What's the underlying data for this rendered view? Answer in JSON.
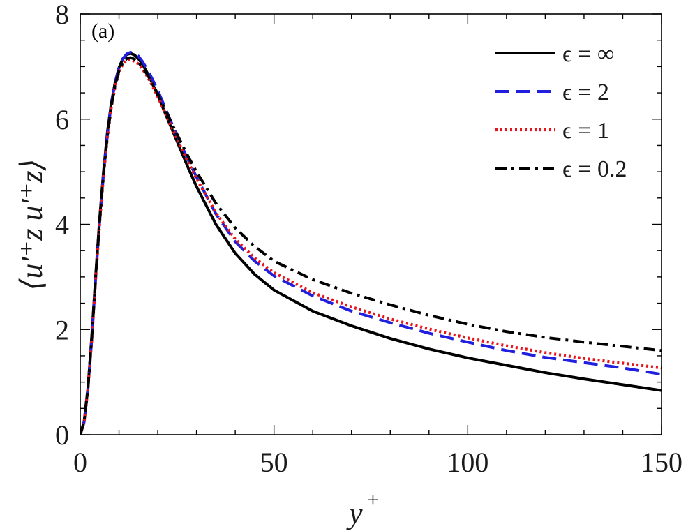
{
  "panel_label": "(a)",
  "chart_data": {
    "type": "line",
    "title": "",
    "xlabel": "y",
    "xlabel_sup": "+",
    "ylabel": "⟨u′⁺z u′⁺z⟩",
    "xlim": [
      0,
      150
    ],
    "ylim": [
      0,
      8
    ],
    "xticks": [
      0,
      50,
      100,
      150
    ],
    "yticks": [
      0,
      2,
      4,
      6,
      8
    ],
    "xtick_labels": [
      "0",
      "50",
      "100",
      "150"
    ],
    "ytick_labels": [
      "0",
      "2",
      "4",
      "6",
      "8"
    ],
    "grid": false,
    "legend_position": "top-right",
    "x": [
      0,
      1,
      2,
      3,
      4,
      5,
      6,
      7,
      8,
      9,
      10,
      11,
      12,
      13,
      14,
      15,
      16,
      17,
      18,
      20,
      22,
      24,
      26,
      28,
      30,
      35,
      40,
      45,
      50,
      60,
      70,
      80,
      90,
      100,
      110,
      120,
      130,
      140,
      150
    ],
    "series": [
      {
        "name": "ϵ = ∞",
        "color": "#000000",
        "dash": "solid",
        "values": [
          0,
          0.25,
          0.9,
          1.9,
          3.05,
          4.1,
          5.0,
          5.75,
          6.3,
          6.7,
          6.98,
          7.15,
          7.23,
          7.25,
          7.22,
          7.15,
          7.05,
          6.92,
          6.78,
          6.45,
          6.1,
          5.75,
          5.4,
          5.05,
          4.72,
          4.0,
          3.45,
          3.05,
          2.75,
          2.35,
          2.07,
          1.83,
          1.63,
          1.46,
          1.32,
          1.18,
          1.06,
          0.95,
          0.84
        ]
      },
      {
        "name": "ϵ = 2",
        "color": "#1f1fdd",
        "dash": "dashed",
        "values": [
          0,
          0.24,
          0.88,
          1.85,
          3.0,
          4.05,
          4.95,
          5.7,
          6.28,
          6.7,
          6.98,
          7.15,
          7.24,
          7.27,
          7.25,
          7.2,
          7.1,
          6.98,
          6.85,
          6.55,
          6.2,
          5.85,
          5.52,
          5.2,
          4.9,
          4.2,
          3.67,
          3.3,
          3.02,
          2.64,
          2.35,
          2.13,
          1.93,
          1.76,
          1.6,
          1.47,
          1.37,
          1.27,
          1.15
        ]
      },
      {
        "name": "ϵ = 1",
        "color": "#e8141c",
        "dash": "dotted",
        "values": [
          0,
          0.24,
          0.88,
          1.84,
          2.98,
          4.02,
          4.92,
          5.65,
          6.22,
          6.62,
          6.9,
          7.05,
          7.12,
          7.13,
          7.1,
          7.05,
          6.96,
          6.85,
          6.72,
          6.43,
          6.1,
          5.78,
          5.46,
          5.16,
          4.87,
          4.22,
          3.72,
          3.36,
          3.08,
          2.7,
          2.43,
          2.2,
          2.01,
          1.84,
          1.69,
          1.56,
          1.45,
          1.36,
          1.27
        ]
      },
      {
        "name": "ϵ = 0.2",
        "color": "#000000",
        "dash": "dashdot",
        "values": [
          0,
          0.25,
          0.9,
          1.88,
          3.02,
          4.06,
          4.96,
          5.68,
          6.24,
          6.64,
          6.92,
          7.08,
          7.15,
          7.17,
          7.14,
          7.08,
          6.99,
          6.88,
          6.76,
          6.48,
          6.17,
          5.86,
          5.56,
          5.27,
          5.0,
          4.4,
          3.93,
          3.58,
          3.3,
          2.95,
          2.69,
          2.47,
          2.27,
          2.1,
          1.96,
          1.85,
          1.76,
          1.68,
          1.6
        ]
      }
    ]
  }
}
